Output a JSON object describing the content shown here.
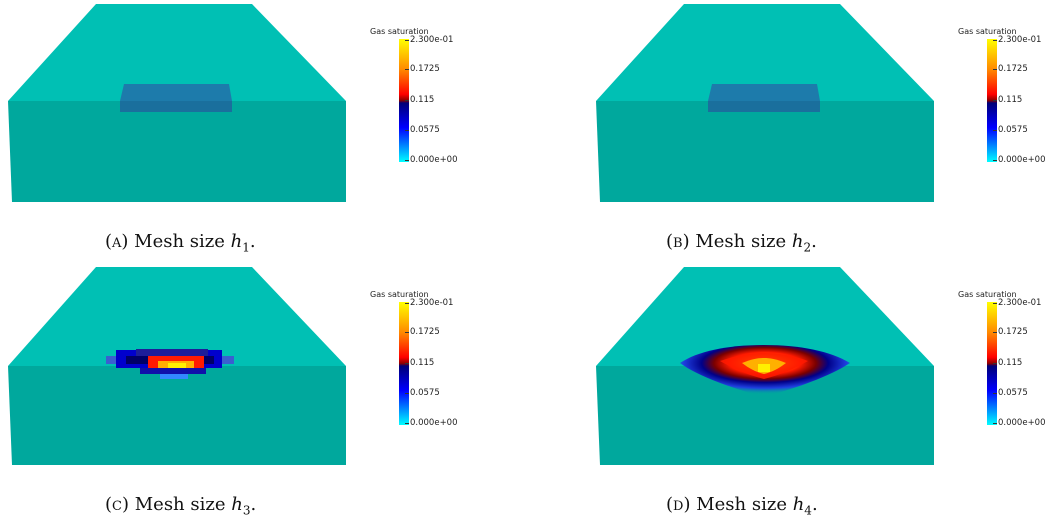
{
  "colorbar": {
    "title": "Gas saturation",
    "ticks": [
      "2.300e-01",
      "0.1725",
      "0.115",
      "0.0575",
      "0.000e+00"
    ],
    "colormap": [
      "#ffff00",
      "#ff8800",
      "#ff0000",
      "#8b0000",
      "#000077",
      "#0000ff",
      "#00ffff"
    ]
  },
  "panels": [
    {
      "id": "a",
      "label": "(a)",
      "caption_text": "Mesh size",
      "var": "h",
      "sub": "1",
      "plume": "none"
    },
    {
      "id": "b",
      "label": "(b)",
      "caption_text": "Mesh size",
      "var": "h",
      "sub": "2",
      "plume": "none"
    },
    {
      "id": "c",
      "label": "(c)",
      "caption_text": "Mesh size",
      "var": "h",
      "sub": "3",
      "plume": "compact"
    },
    {
      "id": "d",
      "label": "(d)",
      "caption_text": "Mesh size",
      "var": "h",
      "sub": "4",
      "plume": "spread"
    }
  ],
  "colors": {
    "top_face": "#00c0b4",
    "front_face": "#00a89d",
    "inclusion": "#1a78a8"
  }
}
